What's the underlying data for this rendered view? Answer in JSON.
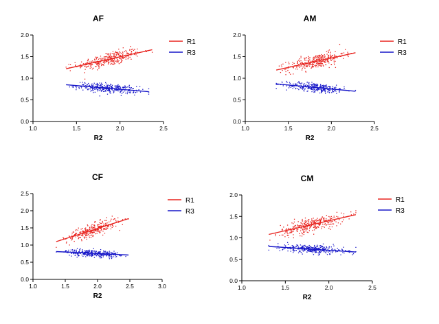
{
  "chart_data": [
    {
      "type": "scatter",
      "title": "AF",
      "xlabel": "R2",
      "ylabel": "",
      "xlim": [
        1.0,
        2.5
      ],
      "ylim": [
        0.0,
        2.0
      ],
      "xticks": [
        "1.0",
        "1.5",
        "2.0",
        "2.5"
      ],
      "yticks": [
        "0.0",
        "0.5",
        "1.0",
        "1.5",
        "2.0"
      ],
      "legend": "top-right",
      "series": [
        {
          "name": "R1",
          "color": "#e8231e",
          "x_range": [
            1.38,
            2.37
          ],
          "trend": [
            [
              1.38,
              1.22
            ],
            [
              2.37,
              1.66
            ]
          ],
          "spread": 0.08,
          "n": 320
        },
        {
          "name": "R3",
          "color": "#1616c8",
          "x_range": [
            1.38,
            2.33
          ],
          "trend": [
            [
              1.38,
              0.85
            ],
            [
              2.33,
              0.69
            ]
          ],
          "spread": 0.05,
          "n": 320
        }
      ]
    },
    {
      "type": "scatter",
      "title": "AM",
      "xlabel": "R2",
      "ylabel": "",
      "xlim": [
        1.0,
        2.5
      ],
      "ylim": [
        0.0,
        2.0
      ],
      "xticks": [
        "1.0",
        "1.5",
        "2.0",
        "2.5"
      ],
      "yticks": [
        "0.0",
        "0.5",
        "1.0",
        "1.5",
        "2.0"
      ],
      "legend": "top-right",
      "series": [
        {
          "name": "R1",
          "color": "#e8231e",
          "x_range": [
            1.36,
            2.28
          ],
          "trend": [
            [
              1.36,
              1.19
            ],
            [
              2.28,
              1.59
            ]
          ],
          "spread": 0.08,
          "n": 320
        },
        {
          "name": "R3",
          "color": "#1616c8",
          "x_range": [
            1.36,
            2.28
          ],
          "trend": [
            [
              1.36,
              0.87
            ],
            [
              2.28,
              0.7
            ]
          ],
          "spread": 0.05,
          "n": 320
        }
      ]
    },
    {
      "type": "scatter",
      "title": "CF",
      "xlabel": "R2",
      "ylabel": "",
      "xlim": [
        1.0,
        3.0
      ],
      "ylim": [
        0.0,
        2.5
      ],
      "xticks": [
        "1.0",
        "1.5",
        "2.0",
        "2.5",
        "3.0"
      ],
      "yticks": [
        "0.0",
        "0.5",
        "1.0",
        "1.5",
        "2.0",
        "2.5"
      ],
      "legend": "top-right",
      "series": [
        {
          "name": "R1",
          "color": "#e8231e",
          "x_range": [
            1.36,
            2.48
          ],
          "trend": [
            [
              1.36,
              1.1
            ],
            [
              2.48,
              1.77
            ]
          ],
          "spread": 0.09,
          "n": 300
        },
        {
          "name": "R3",
          "color": "#1616c8",
          "x_range": [
            1.36,
            2.48
          ],
          "trend": [
            [
              1.36,
              0.81
            ],
            [
              2.48,
              0.71
            ]
          ],
          "spread": 0.05,
          "n": 300
        }
      ]
    },
    {
      "type": "scatter",
      "title": "CM",
      "xlabel": "R2",
      "ylabel": "",
      "xlim": [
        1.0,
        2.5
      ],
      "ylim": [
        0.0,
        2.0
      ],
      "xticks": [
        "1.0",
        "1.5",
        "2.0",
        "2.5"
      ],
      "yticks": [
        "0.0",
        "0.5",
        "1.0",
        "1.5",
        "2.0"
      ],
      "legend": "top-right",
      "series": [
        {
          "name": "R1",
          "color": "#e8231e",
          "x_range": [
            1.31,
            2.31
          ],
          "trend": [
            [
              1.31,
              1.08
            ],
            [
              2.31,
              1.54
            ]
          ],
          "spread": 0.08,
          "n": 320
        },
        {
          "name": "R3",
          "color": "#1616c8",
          "x_range": [
            1.31,
            2.31
          ],
          "trend": [
            [
              1.31,
              0.8
            ],
            [
              2.31,
              0.67
            ]
          ],
          "spread": 0.05,
          "n": 320
        }
      ]
    }
  ]
}
